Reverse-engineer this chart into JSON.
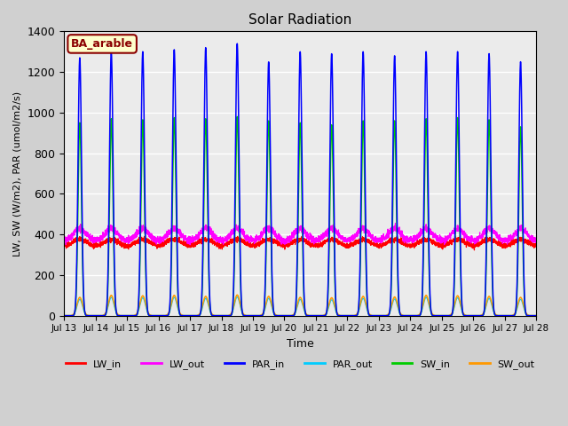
{
  "title": "Solar Radiation",
  "ylabel": "LW, SW (W/m2), PAR (umol/m2/s)",
  "xlabel": "Time",
  "annotation": "BA_arable",
  "ylim": [
    0,
    1400
  ],
  "series_colors": {
    "LW_in": "#ff0000",
    "LW_out": "#ff00ff",
    "PAR_in": "#0000ff",
    "PAR_out": "#00ccff",
    "SW_in": "#00cc00",
    "SW_out": "#ff9900"
  },
  "legend_order": [
    "LW_in",
    "LW_out",
    "PAR_in",
    "PAR_out",
    "SW_in",
    "SW_out"
  ],
  "n_days": 15,
  "start_day": 13,
  "fig_bg": "#d0d0d0",
  "ax_bg": "#ebebeb"
}
